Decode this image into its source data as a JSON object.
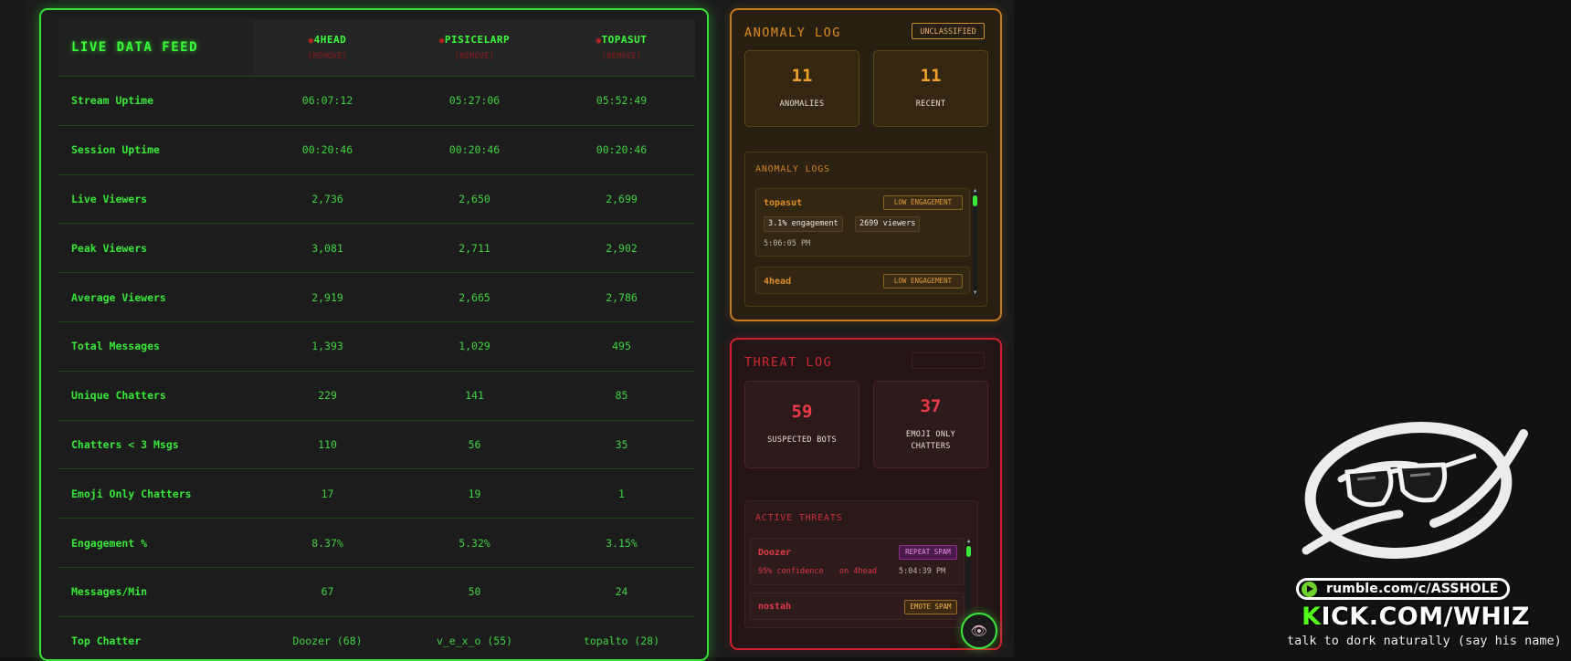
{
  "feed": {
    "title": "LIVE DATA FEED",
    "channels": [
      {
        "name": "4HEAD",
        "remove": "[REMOVE]"
      },
      {
        "name": "PISICELARP",
        "remove": "[REMOVE]"
      },
      {
        "name": "TOPASUT",
        "remove": "[REMOVE]"
      }
    ],
    "rows": [
      {
        "label": "Stream Uptime",
        "values": [
          "06:07:12",
          "05:27:06",
          "05:52:49"
        ]
      },
      {
        "label": "Session Uptime",
        "values": [
          "00:20:46",
          "00:20:46",
          "00:20:46"
        ]
      },
      {
        "label": "Live Viewers",
        "values": [
          "2,736",
          "2,650",
          "2,699"
        ]
      },
      {
        "label": "Peak Viewers",
        "values": [
          "3,081",
          "2,711",
          "2,902"
        ]
      },
      {
        "label": "Average Viewers",
        "values": [
          "2,919",
          "2,665",
          "2,786"
        ]
      },
      {
        "label": "Total Messages",
        "values": [
          "1,393",
          "1,029",
          "495"
        ]
      },
      {
        "label": "Unique Chatters",
        "values": [
          "229",
          "141",
          "85"
        ]
      },
      {
        "label": "Chatters < 3 Msgs",
        "values": [
          "110",
          "56",
          "35"
        ]
      },
      {
        "label": "Emoji Only Chatters",
        "values": [
          "17",
          "19",
          "1"
        ]
      },
      {
        "label": "Engagement %",
        "values": [
          "8.37%",
          "5.32%",
          "3.15%"
        ]
      },
      {
        "label": "Messages/Min",
        "values": [
          "67",
          "50",
          "24"
        ]
      },
      {
        "label": "Top Chatter",
        "values": [
          "Doozer (68)",
          "v_e_x_o (55)",
          "topalto (28)"
        ]
      }
    ]
  },
  "anomaly": {
    "title": "ANOMALY LOG",
    "tag": "UNCLASSIFIED",
    "stats": [
      {
        "value": "11",
        "label": "ANOMALIES"
      },
      {
        "value": "11",
        "label": "RECENT"
      }
    ],
    "logs_title": "ANOMALY LOGS",
    "entries": [
      {
        "name": "topasut",
        "badge": "LOW ENGAGEMENT",
        "chips": [
          "3.1% engagement",
          "2699 viewers"
        ],
        "time": "5:06:05 PM"
      },
      {
        "name": "4head",
        "badge": "LOW ENGAGEMENT"
      }
    ]
  },
  "threat": {
    "title": "THREAT LOG",
    "stats": [
      {
        "value": "59",
        "label": "SUSPECTED BOTS"
      },
      {
        "value": "37",
        "label_line1": "EMOJI ONLY",
        "label_line2": "CHATTERS"
      }
    ],
    "active_title": "ACTIVE THREATS",
    "entries": [
      {
        "name": "Doozer",
        "badge": "REPEAT SPAM",
        "confidence": "95% confidence",
        "channel": "on 4head",
        "time": "5:04:39 PM"
      },
      {
        "name": "nostah",
        "badge": "EMOTE SPAM"
      }
    ]
  },
  "overlay": {
    "rumble": "rumble.com/c/ASSHOLE",
    "kick_k": "K",
    "kick_rest": "ICK.COM/WHIZ",
    "caption": "talk to dork naturally (say his name)"
  },
  "icons": {
    "eye": "eye-icon",
    "rumble": "rumble-logo-icon",
    "scroll_up": "chevron-up-icon",
    "scroll_down": "chevron-down-icon"
  },
  "colors": {
    "feed_accent": "#38e038",
    "anomaly_accent": "#c97a1a",
    "threat_accent": "#cf1f2c",
    "kick_green": "#53fc18"
  }
}
